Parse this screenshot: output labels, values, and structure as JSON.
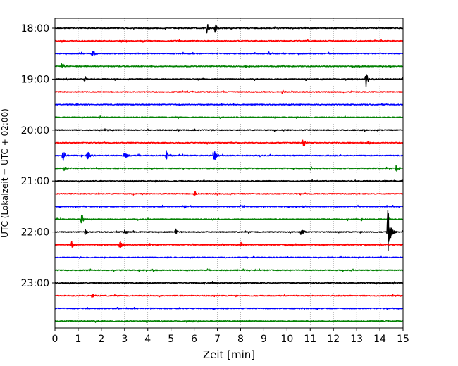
{
  "chart_data": {
    "type": "line",
    "title": "",
    "xlabel": "Zeit  [min]",
    "ylabel": "UTC (Lokalzeit = UTC + 02:00)",
    "xlim": [
      0,
      15
    ],
    "x_ticks": [
      "0",
      "1",
      "2",
      "3",
      "4",
      "5",
      "6",
      "7",
      "8",
      "9",
      "10",
      "11",
      "12",
      "13",
      "14",
      "15"
    ],
    "y_ticks": [
      "18:00",
      "19:00",
      "20:00",
      "21:00",
      "22:00",
      "23:00"
    ],
    "grid": "vertical dotted",
    "trace_interval_min": 15,
    "trace_colors": [
      "#000000",
      "#ff0000",
      "#0000ff",
      "#008000"
    ],
    "traces": [
      {
        "start": "18:00",
        "color": "#000000",
        "events": [
          {
            "t": 6.55,
            "amp": 1.0
          },
          {
            "t": 6.9,
            "amp": 0.8
          }
        ]
      },
      {
        "start": "18:15",
        "color": "#ff0000",
        "events": []
      },
      {
        "start": "18:30",
        "color": "#0000ff",
        "events": [
          {
            "t": 1.6,
            "amp": 0.8
          },
          {
            "t": 9.2,
            "amp": 0.3
          }
        ]
      },
      {
        "start": "18:45",
        "color": "#008000",
        "events": [
          {
            "t": 0.3,
            "amp": 0.6
          },
          {
            "t": 8.2,
            "amp": 0.3
          }
        ]
      },
      {
        "start": "19:00",
        "color": "#000000",
        "events": [
          {
            "t": 1.3,
            "amp": 0.5
          },
          {
            "t": 13.4,
            "amp": 1.3
          }
        ]
      },
      {
        "start": "19:15",
        "color": "#ff0000",
        "events": [
          {
            "t": 9.8,
            "amp": 0.3
          }
        ]
      },
      {
        "start": "19:30",
        "color": "#0000ff",
        "events": []
      },
      {
        "start": "19:45",
        "color": "#008000",
        "events": []
      },
      {
        "start": "20:00",
        "color": "#000000",
        "events": []
      },
      {
        "start": "20:15",
        "color": "#ff0000",
        "events": [
          {
            "t": 10.7,
            "amp": 0.9
          },
          {
            "t": 13.5,
            "amp": 0.4
          }
        ]
      },
      {
        "start": "20:30",
        "color": "#0000ff",
        "events": [
          {
            "t": 0.35,
            "amp": 1.0
          },
          {
            "t": 1.4,
            "amp": 0.7
          },
          {
            "t": 3.0,
            "amp": 0.6
          },
          {
            "t": 4.8,
            "amp": 0.8
          },
          {
            "t": 6.85,
            "amp": 1.3
          }
        ]
      },
      {
        "start": "20:45",
        "color": "#008000",
        "events": [
          {
            "t": 0.4,
            "amp": 0.4
          },
          {
            "t": 14.7,
            "amp": 0.6
          }
        ]
      },
      {
        "start": "21:00",
        "color": "#000000",
        "events": []
      },
      {
        "start": "21:15",
        "color": "#ff0000",
        "events": [
          {
            "t": 6.0,
            "amp": 0.5
          }
        ]
      },
      {
        "start": "21:30",
        "color": "#0000ff",
        "events": [
          {
            "t": 5.5,
            "amp": 0.5
          },
          {
            "t": 8.0,
            "amp": 0.6
          }
        ]
      },
      {
        "start": "21:45",
        "color": "#008000",
        "events": [
          {
            "t": 1.15,
            "amp": 0.8
          },
          {
            "t": 13.2,
            "amp": 0.3
          }
        ]
      },
      {
        "start": "22:00",
        "color": "#000000",
        "events": [
          {
            "t": 1.3,
            "amp": 0.5
          },
          {
            "t": 3.0,
            "amp": 0.4
          },
          {
            "t": 5.2,
            "amp": 0.5
          },
          {
            "t": 10.6,
            "amp": 0.7
          },
          {
            "t": 14.35,
            "amp": 4.0
          }
        ]
      },
      {
        "start": "22:15",
        "color": "#ff0000",
        "events": [
          {
            "t": 0.7,
            "amp": 0.7
          },
          {
            "t": 2.8,
            "amp": 0.9
          },
          {
            "t": 8.0,
            "amp": 0.4
          }
        ]
      },
      {
        "start": "22:30",
        "color": "#0000ff",
        "events": []
      },
      {
        "start": "22:45",
        "color": "#008000",
        "events": []
      },
      {
        "start": "23:00",
        "color": "#000000",
        "events": [
          {
            "t": 6.8,
            "amp": 0.3
          }
        ]
      },
      {
        "start": "23:15",
        "color": "#ff0000",
        "events": [
          {
            "t": 1.6,
            "amp": 0.4
          }
        ]
      },
      {
        "start": "23:30",
        "color": "#0000ff",
        "events": []
      },
      {
        "start": "23:45",
        "color": "#008000",
        "events": []
      }
    ]
  }
}
